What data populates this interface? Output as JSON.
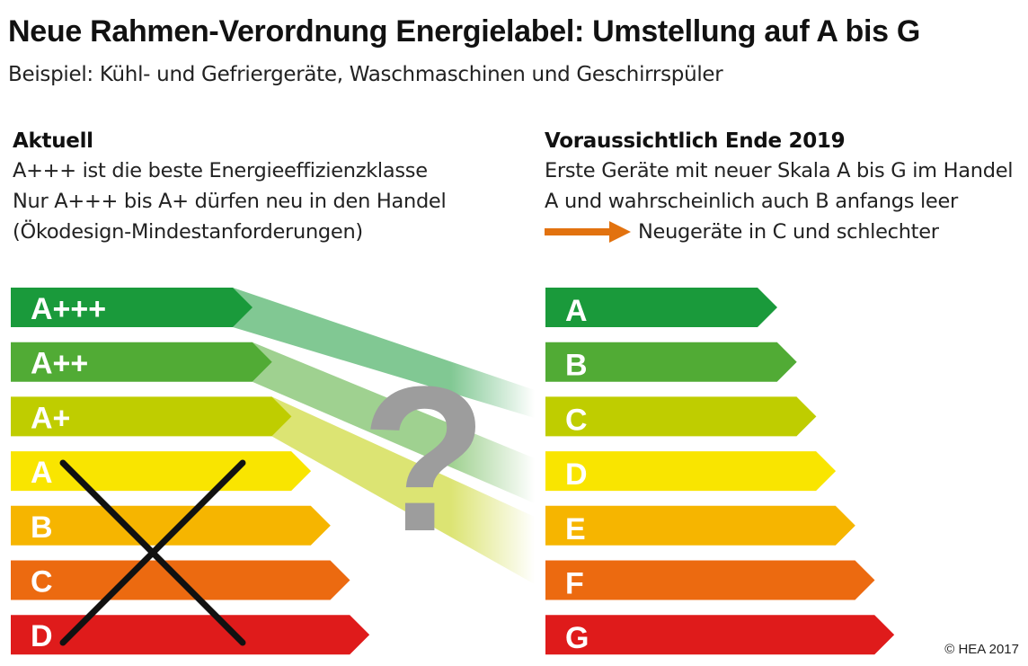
{
  "title": "Neue Rahmen-Verordnung Energielabel: Umstellung auf A bis G",
  "subtitle": "Beispiel: Kühl- und Gefriergeräte, Waschmaschinen und Geschirrspüler",
  "current": {
    "heading": "Aktuell",
    "lines": [
      "A+++ ist die beste Energieeffizienzklasse",
      "Nur  A+++ bis A+ dürfen neu in den Handel",
      "(Ökodesign-Mindestanforderungen)"
    ],
    "classes": [
      {
        "label": "A+++",
        "color": "#1a9a3b"
      },
      {
        "label": "A++",
        "color": "#51ab35"
      },
      {
        "label": "A+",
        "color": "#bfcd00"
      },
      {
        "label": "A",
        "color": "#f9e500"
      },
      {
        "label": "B",
        "color": "#f6b500"
      },
      {
        "label": "C",
        "color": "#ec6a10"
      },
      {
        "label": "D",
        "color": "#df1b1b"
      }
    ],
    "excluded_classes": [
      "A",
      "B",
      "C",
      "D"
    ],
    "cross_color": "#111111"
  },
  "future": {
    "heading": "Voraussichtlich Ende 2019",
    "lines": [
      "Erste Geräte mit neuer Skala A bis G im Handel",
      "A und wahrscheinlich auch B anfangs leer"
    ],
    "arrow_text": "Neugeräte in C und schlechter",
    "arrow_color": "#e2720f",
    "classes": [
      {
        "label": "A",
        "color": "#1a9a3b"
      },
      {
        "label": "B",
        "color": "#51ab35"
      },
      {
        "label": "C",
        "color": "#bfcd00"
      },
      {
        "label": "D",
        "color": "#f9e500"
      },
      {
        "label": "E",
        "color": "#f6b500"
      },
      {
        "label": "F",
        "color": "#ec6a10"
      },
      {
        "label": "G",
        "color": "#df1b1b"
      }
    ]
  },
  "question_mark": {
    "symbol": "?",
    "color": "#9d9d9d"
  },
  "copyright": "© HEA 2017"
}
